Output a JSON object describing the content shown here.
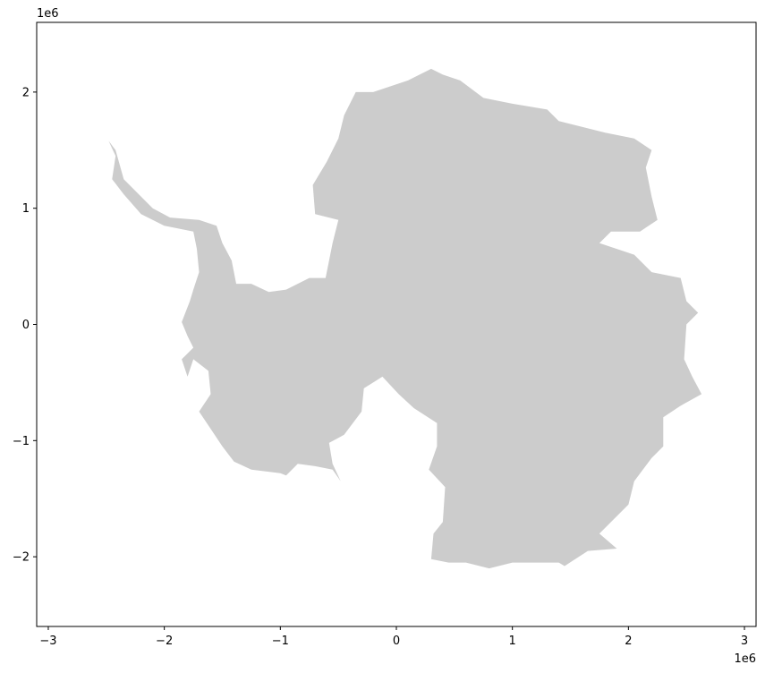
{
  "chart_data": {
    "type": "map",
    "title": "",
    "xlabel": "",
    "ylabel": "",
    "x_offset_label": "1e6",
    "y_offset_label": "1e6",
    "xlim": [
      -3.1,
      3.1
    ],
    "ylim": [
      -2.6,
      2.6
    ],
    "x_ticks": [
      -3,
      -2,
      -1,
      0,
      1,
      2,
      3
    ],
    "y_ticks": [
      -2,
      -1,
      0,
      1,
      2
    ],
    "x_tick_labels": [
      "−3",
      "−2",
      "−1",
      "0",
      "1",
      "2",
      "3"
    ],
    "y_tick_labels": [
      "−2",
      "−1",
      "0",
      "1",
      "2"
    ],
    "fill_color": "#cccccc",
    "axis_color": "#000000",
    "grid": false,
    "region": "Antarctica",
    "outline": [
      [
        0.3,
        2.2
      ],
      [
        0.4,
        2.15
      ],
      [
        0.55,
        2.1
      ],
      [
        0.75,
        1.95
      ],
      [
        1.0,
        1.9
      ],
      [
        1.3,
        1.85
      ],
      [
        1.4,
        1.75
      ],
      [
        1.6,
        1.7
      ],
      [
        1.8,
        1.65
      ],
      [
        2.05,
        1.6
      ],
      [
        2.2,
        1.5
      ],
      [
        2.15,
        1.35
      ],
      [
        2.2,
        1.1
      ],
      [
        2.25,
        0.9
      ],
      [
        2.1,
        0.8
      ],
      [
        1.85,
        0.8
      ],
      [
        1.75,
        0.7
      ],
      [
        2.05,
        0.6
      ],
      [
        2.2,
        0.45
      ],
      [
        2.45,
        0.4
      ],
      [
        2.5,
        0.2
      ],
      [
        2.6,
        0.1
      ],
      [
        2.5,
        0.0
      ],
      [
        2.48,
        -0.3
      ],
      [
        2.55,
        -0.45
      ],
      [
        2.63,
        -0.6
      ],
      [
        2.45,
        -0.7
      ],
      [
        2.3,
        -0.8
      ],
      [
        2.3,
        -1.05
      ],
      [
        2.2,
        -1.15
      ],
      [
        2.05,
        -1.35
      ],
      [
        2.0,
        -1.55
      ],
      [
        1.9,
        -1.65
      ],
      [
        1.75,
        -1.8
      ],
      [
        1.9,
        -1.93
      ],
      [
        1.65,
        -1.95
      ],
      [
        1.45,
        -2.08
      ],
      [
        1.4,
        -2.05
      ],
      [
        1.0,
        -2.05
      ],
      [
        0.8,
        -2.1
      ],
      [
        0.6,
        -2.05
      ],
      [
        0.45,
        -2.05
      ],
      [
        0.3,
        -2.02
      ],
      [
        0.32,
        -1.8
      ],
      [
        0.4,
        -1.7
      ],
      [
        0.42,
        -1.4
      ],
      [
        0.28,
        -1.25
      ],
      [
        0.35,
        -1.05
      ],
      [
        0.35,
        -0.85
      ],
      [
        0.15,
        -0.72
      ],
      [
        0.02,
        -0.6
      ],
      [
        -0.12,
        -0.45
      ],
      [
        -0.2,
        -0.5
      ],
      [
        -0.28,
        -0.55
      ],
      [
        -0.3,
        -0.75
      ],
      [
        -0.45,
        -0.95
      ],
      [
        -0.58,
        -1.02
      ],
      [
        -0.55,
        -1.2
      ],
      [
        -0.48,
        -1.35
      ],
      [
        -0.55,
        -1.25
      ],
      [
        -0.7,
        -1.22
      ],
      [
        -0.85,
        -1.2
      ],
      [
        -0.95,
        -1.3
      ],
      [
        -1.0,
        -1.28
      ],
      [
        -1.25,
        -1.25
      ],
      [
        -1.4,
        -1.18
      ],
      [
        -1.5,
        -1.05
      ],
      [
        -1.6,
        -0.9
      ],
      [
        -1.7,
        -0.75
      ],
      [
        -1.6,
        -0.6
      ],
      [
        -1.62,
        -0.4
      ],
      [
        -1.75,
        -0.3
      ],
      [
        -1.8,
        -0.45
      ],
      [
        -1.85,
        -0.3
      ],
      [
        -1.75,
        -0.2
      ],
      [
        -1.8,
        -0.1
      ],
      [
        -1.85,
        0.02
      ],
      [
        -1.78,
        0.2
      ],
      [
        -1.75,
        0.3
      ],
      [
        -1.7,
        0.45
      ],
      [
        -1.72,
        0.65
      ],
      [
        -1.75,
        0.8
      ],
      [
        -2.0,
        0.85
      ],
      [
        -2.2,
        0.95
      ],
      [
        -2.35,
        1.12
      ],
      [
        -2.45,
        1.25
      ],
      [
        -2.42,
        1.45
      ],
      [
        -2.48,
        1.58
      ],
      [
        -2.42,
        1.5
      ],
      [
        -2.35,
        1.25
      ],
      [
        -2.1,
        1.0
      ],
      [
        -1.95,
        0.92
      ],
      [
        -1.7,
        0.9
      ],
      [
        -1.55,
        0.85
      ],
      [
        -1.5,
        0.7
      ],
      [
        -1.42,
        0.55
      ],
      [
        -1.38,
        0.35
      ],
      [
        -1.25,
        0.35
      ],
      [
        -1.1,
        0.28
      ],
      [
        -0.95,
        0.3
      ],
      [
        -0.75,
        0.4
      ],
      [
        -0.6,
        0.4
      ],
      [
        -0.65,
        0.2
      ],
      [
        -0.58,
        0.55
      ],
      [
        -0.55,
        0.7
      ],
      [
        -0.5,
        0.9
      ],
      [
        -0.7,
        0.95
      ],
      [
        -0.72,
        1.2
      ],
      [
        -0.6,
        1.4
      ],
      [
        -0.5,
        1.6
      ],
      [
        -0.45,
        1.8
      ],
      [
        -0.35,
        2.0
      ],
      [
        -0.2,
        2.0
      ],
      [
        -0.05,
        2.05
      ],
      [
        0.1,
        2.1
      ]
    ]
  }
}
